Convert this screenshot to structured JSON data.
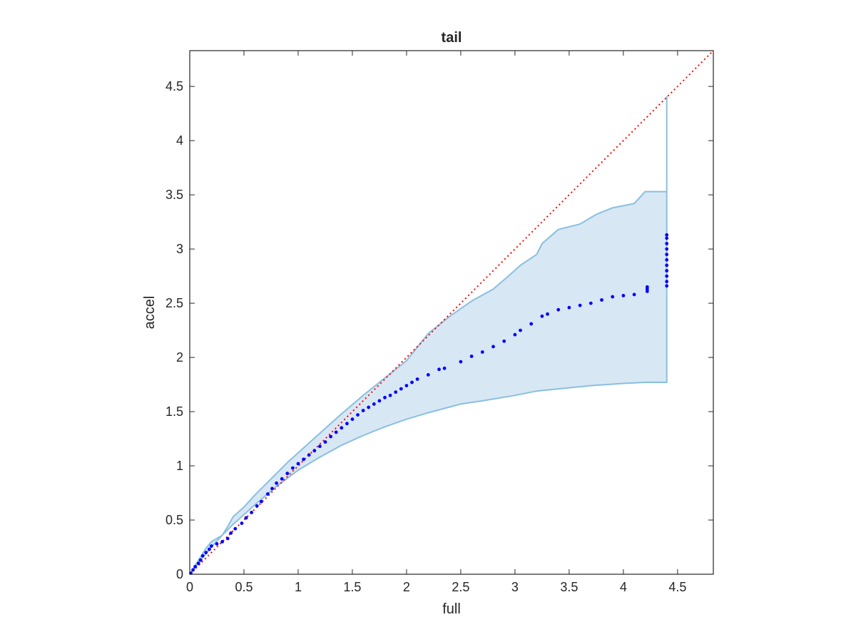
{
  "chart_data": {
    "type": "scatter",
    "title": "tail",
    "xlabel": "full",
    "ylabel": "accel",
    "xlim": [
      0,
      4.83
    ],
    "ylim": [
      0,
      4.83
    ],
    "xticks": [
      0,
      0.5,
      1,
      1.5,
      2,
      2.5,
      3,
      3.5,
      4,
      4.5
    ],
    "yticks": [
      0,
      0.5,
      1,
      1.5,
      2,
      2.5,
      3,
      3.5,
      4,
      4.5
    ],
    "xtick_labels": [
      "0",
      "0.5",
      "1",
      "1.5",
      "2",
      "2.5",
      "3",
      "3.5",
      "4",
      "4.5"
    ],
    "ytick_labels": [
      "0",
      "0.5",
      "1",
      "1.5",
      "2",
      "2.5",
      "3",
      "3.5",
      "4",
      "4.5"
    ],
    "grid": false,
    "box": true,
    "colors": {
      "points": "#0000ff",
      "band_fill": "#d8e7f4",
      "band_edge": "#89bfe0",
      "reference": "#ff0000",
      "axes": "#262626"
    },
    "reference_line": {
      "style": "dotted",
      "from": [
        0,
        0
      ],
      "to": [
        4.83,
        4.83
      ]
    },
    "band_upper": [
      [
        0,
        0
      ],
      [
        0.05,
        0.08
      ],
      [
        0.1,
        0.16
      ],
      [
        0.15,
        0.24
      ],
      [
        0.2,
        0.3
      ],
      [
        0.25,
        0.33
      ],
      [
        0.3,
        0.36
      ],
      [
        0.35,
        0.44
      ],
      [
        0.4,
        0.53
      ],
      [
        0.5,
        0.62
      ],
      [
        0.6,
        0.73
      ],
      [
        0.7,
        0.83
      ],
      [
        0.8,
        0.93
      ],
      [
        0.9,
        1.03
      ],
      [
        1.0,
        1.12
      ],
      [
        1.2,
        1.3
      ],
      [
        1.4,
        1.48
      ],
      [
        1.6,
        1.65
      ],
      [
        1.8,
        1.81
      ],
      [
        2.0,
        1.97
      ],
      [
        2.2,
        2.22
      ],
      [
        2.4,
        2.38
      ],
      [
        2.6,
        2.52
      ],
      [
        2.8,
        2.63
      ],
      [
        2.95,
        2.76
      ],
      [
        3.05,
        2.85
      ],
      [
        3.2,
        2.95
      ],
      [
        3.25,
        3.05
      ],
      [
        3.4,
        3.18
      ],
      [
        3.6,
        3.23
      ],
      [
        3.75,
        3.32
      ],
      [
        3.9,
        3.38
      ],
      [
        4.1,
        3.42
      ],
      [
        4.2,
        3.53
      ],
      [
        4.4,
        3.53
      ],
      [
        4.4,
        4.41
      ]
    ],
    "band_lower": [
      [
        4.4,
        4.41
      ],
      [
        4.4,
        1.84
      ],
      [
        4.4,
        1.77
      ],
      [
        4.2,
        1.77
      ],
      [
        4.0,
        1.76
      ],
      [
        3.7,
        1.74
      ],
      [
        3.5,
        1.72
      ],
      [
        3.2,
        1.69
      ],
      [
        3.0,
        1.65
      ],
      [
        2.7,
        1.6
      ],
      [
        2.5,
        1.57
      ],
      [
        2.2,
        1.49
      ],
      [
        2.0,
        1.43
      ],
      [
        1.8,
        1.36
      ],
      [
        1.6,
        1.28
      ],
      [
        1.4,
        1.19
      ],
      [
        1.2,
        1.08
      ],
      [
        1.0,
        0.96
      ],
      [
        0.8,
        0.81
      ],
      [
        0.6,
        0.64
      ],
      [
        0.4,
        0.46
      ],
      [
        0.3,
        0.36
      ],
      [
        0.2,
        0.25
      ],
      [
        0.1,
        0.13
      ],
      [
        0.05,
        0.06
      ],
      [
        0,
        0
      ]
    ],
    "points": [
      [
        0.01,
        0.01
      ],
      [
        0.03,
        0.04
      ],
      [
        0.05,
        0.07
      ],
      [
        0.08,
        0.1
      ],
      [
        0.1,
        0.13
      ],
      [
        0.12,
        0.17
      ],
      [
        0.15,
        0.2
      ],
      [
        0.18,
        0.23
      ],
      [
        0.2,
        0.26
      ],
      [
        0.25,
        0.28
      ],
      [
        0.3,
        0.3
      ],
      [
        0.35,
        0.33
      ],
      [
        0.38,
        0.38
      ],
      [
        0.42,
        0.42
      ],
      [
        0.48,
        0.47
      ],
      [
        0.52,
        0.52
      ],
      [
        0.57,
        0.57
      ],
      [
        0.62,
        0.63
      ],
      [
        0.66,
        0.67
      ],
      [
        0.72,
        0.74
      ],
      [
        0.76,
        0.79
      ],
      [
        0.8,
        0.84
      ],
      [
        0.85,
        0.88
      ],
      [
        0.9,
        0.93
      ],
      [
        0.95,
        0.98
      ],
      [
        1.0,
        1.02
      ],
      [
        1.05,
        1.06
      ],
      [
        1.1,
        1.1
      ],
      [
        1.15,
        1.14
      ],
      [
        1.2,
        1.18
      ],
      [
        1.25,
        1.22
      ],
      [
        1.3,
        1.27
      ],
      [
        1.35,
        1.31
      ],
      [
        1.4,
        1.35
      ],
      [
        1.45,
        1.39
      ],
      [
        1.5,
        1.43
      ],
      [
        1.55,
        1.47
      ],
      [
        1.6,
        1.51
      ],
      [
        1.65,
        1.54
      ],
      [
        1.7,
        1.57
      ],
      [
        1.75,
        1.6
      ],
      [
        1.8,
        1.63
      ],
      [
        1.85,
        1.65
      ],
      [
        1.9,
        1.68
      ],
      [
        1.95,
        1.71
      ],
      [
        2.0,
        1.74
      ],
      [
        2.05,
        1.77
      ],
      [
        2.1,
        1.8
      ],
      [
        2.2,
        1.84
      ],
      [
        2.3,
        1.89
      ],
      [
        2.35,
        1.9
      ],
      [
        2.5,
        1.96
      ],
      [
        2.6,
        2.01
      ],
      [
        2.7,
        2.05
      ],
      [
        2.8,
        2.1
      ],
      [
        2.9,
        2.15
      ],
      [
        3.0,
        2.21
      ],
      [
        3.05,
        2.25
      ],
      [
        3.15,
        2.31
      ],
      [
        3.25,
        2.38
      ],
      [
        3.3,
        2.4
      ],
      [
        3.4,
        2.44
      ],
      [
        3.5,
        2.46
      ],
      [
        3.6,
        2.48
      ],
      [
        3.7,
        2.5
      ],
      [
        3.8,
        2.53
      ],
      [
        3.9,
        2.56
      ],
      [
        4.0,
        2.57
      ],
      [
        4.1,
        2.58
      ],
      [
        4.22,
        2.61
      ],
      [
        4.22,
        2.63
      ],
      [
        4.22,
        2.65
      ],
      [
        4.4,
        2.66
      ],
      [
        4.4,
        2.7
      ],
      [
        4.4,
        2.75
      ],
      [
        4.4,
        2.8
      ],
      [
        4.4,
        2.85
      ],
      [
        4.4,
        2.9
      ],
      [
        4.4,
        2.95
      ],
      [
        4.4,
        3.0
      ],
      [
        4.4,
        3.05
      ],
      [
        4.4,
        3.1
      ],
      [
        4.4,
        3.13
      ]
    ]
  }
}
